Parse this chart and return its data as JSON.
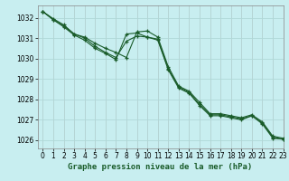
{
  "xlabel": "Graphe pression niveau de la mer (hPa)",
  "background_color": "#c8eef0",
  "grid_color": "#b0d8d8",
  "line_color": "#1a5c2a",
  "xlim": [
    -0.5,
    23
  ],
  "ylim": [
    1025.6,
    1032.6
  ],
  "yticks": [
    1026,
    1027,
    1028,
    1029,
    1030,
    1031,
    1032
  ],
  "xticks": [
    0,
    1,
    2,
    3,
    4,
    5,
    6,
    7,
    8,
    9,
    10,
    11,
    12,
    13,
    14,
    15,
    16,
    17,
    18,
    19,
    20,
    21,
    22,
    23
  ],
  "series1": {
    "x": [
      0,
      1,
      2,
      3,
      4,
      5,
      6,
      7,
      8,
      9,
      10,
      11,
      12,
      13,
      14,
      15,
      16,
      17,
      18,
      19,
      20,
      21,
      22,
      23
    ],
    "y": [
      1032.3,
      1031.95,
      1031.65,
      1031.2,
      1031.05,
      1030.75,
      1030.5,
      1030.3,
      1030.05,
      1031.3,
      1031.35,
      1031.05,
      1029.6,
      1028.65,
      1028.4,
      1027.85,
      1027.3,
      1027.3,
      1027.2,
      1027.1,
      1027.25,
      1026.9,
      1026.2,
      1026.1
    ]
  },
  "series2": {
    "x": [
      0,
      1,
      2,
      3,
      4,
      5,
      6,
      7,
      8,
      9,
      10,
      11,
      12,
      13,
      14,
      15,
      16,
      17,
      18,
      19,
      20,
      21,
      22,
      23
    ],
    "y": [
      1032.3,
      1031.9,
      1031.6,
      1031.2,
      1031.0,
      1030.6,
      1030.3,
      1030.05,
      1030.85,
      1031.1,
      1031.05,
      1030.95,
      1029.5,
      1028.6,
      1028.35,
      1027.75,
      1027.25,
      1027.25,
      1027.15,
      1027.05,
      1027.2,
      1026.85,
      1026.15,
      1026.05
    ]
  },
  "series3": {
    "x": [
      0,
      1,
      2,
      3,
      4,
      5,
      6,
      7,
      8,
      9,
      10,
      11,
      12,
      13,
      14,
      15,
      16,
      17,
      18,
      19,
      20,
      21,
      22,
      23
    ],
    "y": [
      1032.3,
      1031.9,
      1031.55,
      1031.15,
      1030.9,
      1030.5,
      1030.25,
      1029.95,
      1031.2,
      1031.25,
      1031.05,
      1030.9,
      1029.45,
      1028.55,
      1028.3,
      1027.7,
      1027.2,
      1027.2,
      1027.1,
      1027.0,
      1027.2,
      1026.8,
      1026.1,
      1026.05
    ]
  },
  "ticker_fontsize": 5.5,
  "xlabel_fontsize": 6.5
}
